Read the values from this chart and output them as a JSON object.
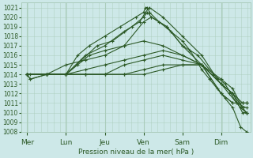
{
  "xlabel": "Pression niveau de la mer( hPa )",
  "bg_color": "#cde8e8",
  "grid_color": "#aaccbb",
  "line_color": "#2d5a27",
  "ylim": [
    1008,
    1021.5
  ],
  "yticks": [
    1008,
    1009,
    1010,
    1011,
    1012,
    1013,
    1014,
    1015,
    1016,
    1017,
    1018,
    1019,
    1020,
    1021
  ],
  "day_labels": [
    "Mer",
    "Lun",
    "Jeu",
    "Ven",
    "Sam",
    "Dim"
  ],
  "day_positions": [
    0,
    1,
    2,
    3,
    4,
    5
  ],
  "series": [
    {
      "x": [
        0.0,
        0.08,
        0.5,
        1.0,
        1.3,
        1.6,
        2.0,
        2.4,
        2.8,
        3.0,
        3.05,
        3.1,
        3.15,
        3.4,
        3.7,
        4.0,
        4.2,
        4.5,
        4.7,
        4.9,
        5.1,
        5.3,
        5.5,
        5.65
      ],
      "y": [
        1014,
        1013.5,
        1014,
        1014,
        1016,
        1017,
        1018,
        1019,
        1020,
        1020.5,
        1021,
        1021,
        1020.5,
        1019.5,
        1018.5,
        1017.5,
        1016.5,
        1014.5,
        1013.5,
        1012.5,
        1011.5,
        1010.5,
        1008.5,
        1008
      ]
    },
    {
      "x": [
        0.0,
        0.08,
        0.5,
        1.0,
        1.5,
        2.0,
        2.5,
        2.9,
        3.05,
        3.15,
        3.5,
        4.0,
        4.5,
        4.9,
        5.2,
        5.5,
        5.65
      ],
      "y": [
        1014,
        1014,
        1014,
        1014,
        1016,
        1017,
        1018.5,
        1019.5,
        1020.5,
        1021,
        1020,
        1018,
        1016,
        1013.5,
        1012,
        1010.5,
        1010
      ]
    },
    {
      "x": [
        0.0,
        0.08,
        0.5,
        1.0,
        1.4,
        1.8,
        2.2,
        2.7,
        3.0,
        3.1,
        3.2,
        3.6,
        4.0,
        4.4,
        4.8,
        5.1,
        5.4,
        5.65
      ],
      "y": [
        1014,
        1013.5,
        1014,
        1014,
        1015.5,
        1017,
        1017.5,
        1019,
        1020,
        1020.5,
        1020,
        1019,
        1017,
        1016,
        1014,
        1013,
        1011,
        1010.5
      ]
    },
    {
      "x": [
        0.0,
        0.5,
        1.0,
        1.5,
        2.0,
        2.5,
        3.0,
        3.2,
        3.6,
        4.0,
        4.5,
        5.0,
        5.3,
        5.55,
        5.65
      ],
      "y": [
        1014,
        1014,
        1015,
        1015.5,
        1016,
        1017,
        1019.5,
        1020,
        1019,
        1017,
        1015,
        1012,
        1011,
        1011,
        1011
      ]
    },
    {
      "x": [
        0.0,
        0.5,
        1.0,
        1.3,
        1.6,
        2.0,
        2.5,
        3.0,
        3.5,
        4.0,
        4.5,
        5.0,
        5.3,
        5.55,
        5.65
      ],
      "y": [
        1014,
        1014,
        1014,
        1015,
        1016,
        1016.5,
        1017,
        1017.5,
        1017,
        1016,
        1015,
        1012,
        1011,
        1011,
        1011
      ]
    },
    {
      "x": [
        0.0,
        0.5,
        1.0,
        1.5,
        2.0,
        2.5,
        3.0,
        3.5,
        4.0,
        4.5,
        5.0,
        5.3,
        5.55,
        5.65
      ],
      "y": [
        1014,
        1014,
        1014,
        1014.5,
        1015,
        1015.5,
        1016,
        1016.5,
        1016,
        1015,
        1013,
        1012,
        1011,
        1011
      ]
    },
    {
      "x": [
        0.0,
        0.5,
        1.0,
        1.5,
        2.0,
        2.5,
        3.0,
        3.5,
        4.0,
        4.5,
        5.0,
        5.3,
        5.55,
        5.65
      ],
      "y": [
        1014,
        1014,
        1014,
        1014,
        1014,
        1015,
        1015.5,
        1016,
        1015.5,
        1015,
        1013,
        1012,
        1010.5,
        1010
      ]
    },
    {
      "x": [
        0.0,
        0.5,
        1.0,
        1.5,
        2.0,
        2.5,
        3.0,
        3.5,
        4.0,
        4.5,
        5.0,
        5.3,
        5.55,
        5.65
      ],
      "y": [
        1014,
        1014,
        1014,
        1014,
        1014,
        1014,
        1014.5,
        1015,
        1015,
        1015,
        1013.5,
        1012.5,
        1010.5,
        1010
      ]
    },
    {
      "x": [
        0.0,
        0.5,
        1.0,
        1.5,
        2.0,
        2.5,
        3.0,
        3.5,
        4.0,
        4.5,
        5.0,
        5.3,
        5.55,
        5.65
      ],
      "y": [
        1014,
        1014,
        1014,
        1014,
        1014,
        1014,
        1014,
        1014.5,
        1015,
        1015,
        1013,
        1012,
        1010,
        1010
      ]
    }
  ]
}
